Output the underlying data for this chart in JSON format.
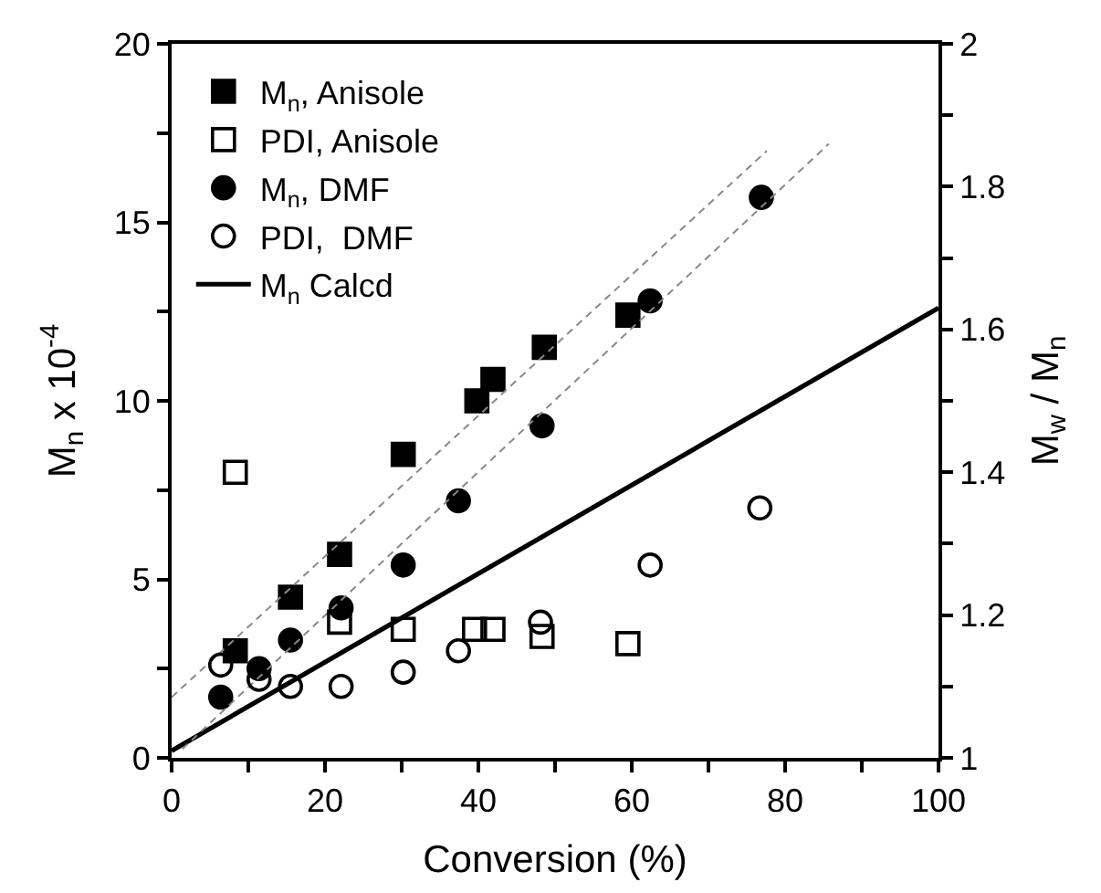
{
  "chart_data": {
    "type": "scatter",
    "xlabel": "Conversion (%)",
    "ylabel": "M$_{n}$ x 10$^{-4}$",
    "y2label": "M$_{w}$ / M$_{n}$",
    "series": [
      {
        "name": "M$_{n}$, Anisole",
        "color": "#000000",
        "marker": "square",
        "x": [
          8.3,
          15.5,
          21.9,
          30.2,
          39.8,
          41.9,
          48.6,
          59.5
        ],
        "values": [
          3.0,
          4.5,
          5.7,
          8.5,
          10.0,
          10.6,
          11.5,
          12.4
        ]
      },
      {
        "name": "PDI, Anisole",
        "color": "#000000",
        "marker": "square",
        "axis": "y2",
        "x": [
          8.3,
          21.9,
          30.2,
          39.5,
          41.9,
          48.3,
          59.5
        ],
        "values": [
          1.4,
          1.19,
          1.18,
          1.18,
          1.18,
          1.17,
          1.16
        ]
      },
      {
        "name": "M$_{n}$, DMF",
        "color": "#000000",
        "marker": "circle",
        "x": [
          6.4,
          11.4,
          15.5,
          22.1,
          30.2,
          37.4,
          48.3,
          62.4,
          76.9
        ],
        "values": [
          1.7,
          2.5,
          3.3,
          4.2,
          5.4,
          7.2,
          9.3,
          12.8,
          15.7
        ]
      },
      {
        "name": "PDI,  DMF",
        "color": "#000000",
        "marker": "circle",
        "axis": "y2",
        "x": [
          6.4,
          11.4,
          15.5,
          22.1,
          30.2,
          37.4,
          48.1,
          62.4,
          76.7
        ],
        "values": [
          1.13,
          1.11,
          1.1,
          1.1,
          1.12,
          1.15,
          1.19,
          1.27,
          1.35
        ]
      },
      {
        "name": "M$_{n}$ Calcd",
        "type": "line",
        "color": "#000000",
        "line_style": "solid",
        "x": [
          0,
          100
        ],
        "values": [
          0.2,
          12.6
        ]
      },
      {
        "type": "line",
        "color": "#888888",
        "line_style": "dashed",
        "x": [
          0,
          77.6
        ],
        "values": [
          1.7,
          17.0
        ]
      },
      {
        "type": "line",
        "color": "#888888",
        "line_style": "dashed",
        "x": [
          1.4,
          85.7
        ],
        "values": [
          0.25,
          17.2
        ]
      }
    ],
    "xlim": [
      0,
      100
    ],
    "xticks": [
      0,
      {
        "value": 10,
        "label": null
      },
      20,
      {
        "value": 30,
        "label": null
      },
      40,
      {
        "value": 50,
        "label": null
      },
      60,
      {
        "value": 70,
        "label": null
      },
      80,
      {
        "value": 90,
        "label": null
      },
      100
    ],
    "ylim": [
      0,
      20
    ],
    "yticks": [
      0,
      {
        "value": 2.5,
        "label": null
      },
      5,
      {
        "value": 7.5,
        "label": null
      },
      10,
      {
        "value": 12.5,
        "label": null
      },
      15,
      {
        "value": 17.5,
        "label": null
      },
      20
    ],
    "y2lim": [
      1,
      2
    ],
    "y2ticks": [
      1,
      {
        "value": 1.1,
        "label": null
      },
      1.2,
      {
        "value": 1.3,
        "label": null
      },
      1.4,
      {
        "value": 1.5,
        "label": null
      },
      1.6,
      {
        "value": 1.7,
        "label": null
      },
      1.8,
      {
        "value": 1.9,
        "label": null
      },
      2
    ],
    "legend": "top left"
  }
}
